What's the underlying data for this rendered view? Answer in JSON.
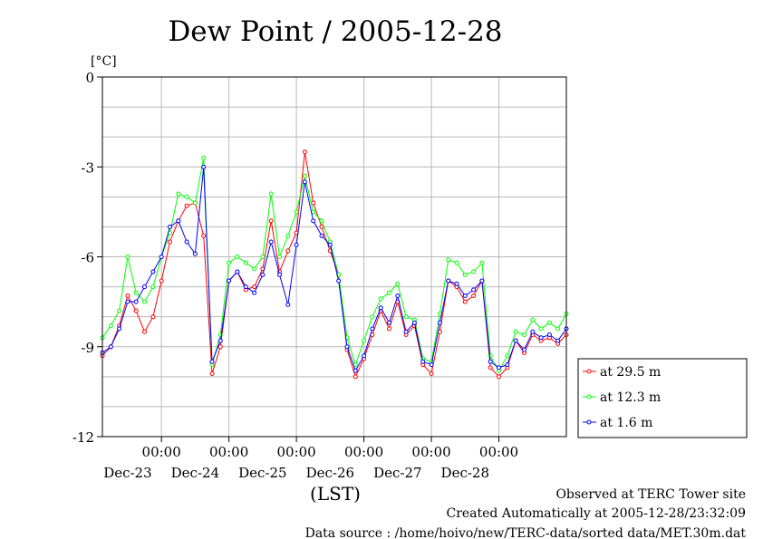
{
  "chart_data": {
    "type": "line",
    "title": "Dew Point / 2005-12-28",
    "ylabel": "[°C]",
    "xlabel": "(LST)",
    "xlim": [
      "2005-12-22T03:00",
      "2005-12-29T00:00"
    ],
    "ylim": [
      -12,
      0
    ],
    "y_ticks": [
      0,
      -3,
      -6,
      -9,
      -12
    ],
    "y_tick_labels": [
      "0",
      "-3",
      "-6",
      "-9",
      "-12"
    ],
    "x_ticks": [
      "2005-12-23T00:00",
      "2005-12-24T00:00",
      "2005-12-25T00:00",
      "2005-12-26T00:00",
      "2005-12-27T00:00",
      "2005-12-28T00:00"
    ],
    "x_tick_labels": [
      "00:00",
      "00:00",
      "00:00",
      "00:00",
      "00:00",
      "00:00"
    ],
    "day_labels": [
      "Dec-23",
      "Dec-24",
      "Dec-25",
      "Dec-26",
      "Dec-27",
      "Dec-28"
    ],
    "grid": true,
    "legend_position": "right",
    "x": [
      "2005-12-22T03:00",
      "2005-12-22T06:00",
      "2005-12-22T09:00",
      "2005-12-22T12:00",
      "2005-12-22T15:00",
      "2005-12-22T18:00",
      "2005-12-22T21:00",
      "2005-12-23T00:00",
      "2005-12-23T03:00",
      "2005-12-23T06:00",
      "2005-12-23T09:00",
      "2005-12-23T12:00",
      "2005-12-23T15:00",
      "2005-12-23T18:00",
      "2005-12-23T21:00",
      "2005-12-24T00:00",
      "2005-12-24T03:00",
      "2005-12-24T06:00",
      "2005-12-24T09:00",
      "2005-12-24T12:00",
      "2005-12-24T15:00",
      "2005-12-24T18:00",
      "2005-12-24T21:00",
      "2005-12-25T00:00",
      "2005-12-25T03:00",
      "2005-12-25T06:00",
      "2005-12-25T09:00",
      "2005-12-25T12:00",
      "2005-12-25T15:00",
      "2005-12-25T18:00",
      "2005-12-25T21:00",
      "2005-12-26T00:00",
      "2005-12-26T03:00",
      "2005-12-26T06:00",
      "2005-12-26T09:00",
      "2005-12-26T12:00",
      "2005-12-26T15:00",
      "2005-12-26T18:00",
      "2005-12-26T21:00",
      "2005-12-27T00:00",
      "2005-12-27T03:00",
      "2005-12-27T06:00",
      "2005-12-27T09:00",
      "2005-12-27T12:00",
      "2005-12-27T15:00",
      "2005-12-27T18:00",
      "2005-12-27T21:00",
      "2005-12-28T00:00",
      "2005-12-28T03:00",
      "2005-12-28T06:00",
      "2005-12-28T09:00",
      "2005-12-28T12:00",
      "2005-12-28T15:00",
      "2005-12-28T18:00",
      "2005-12-28T21:00",
      "2005-12-29T00:00"
    ],
    "series": [
      {
        "name": "at 29.5 m",
        "color": "#ff0000",
        "values": [
          -9.3,
          -9.0,
          -8.3,
          -7.3,
          -7.8,
          -8.5,
          -8.0,
          -6.8,
          -5.5,
          -4.8,
          -4.3,
          -4.2,
          -5.3,
          -9.9,
          -9.0,
          -6.8,
          -6.5,
          -7.1,
          -7.0,
          -6.4,
          -4.8,
          -6.5,
          -5.8,
          -5.2,
          -2.5,
          -4.2,
          -5.0,
          -5.8,
          -6.6,
          -9.1,
          -10.0,
          -9.4,
          -8.6,
          -7.8,
          -8.4,
          -7.5,
          -8.6,
          -8.3,
          -9.6,
          -9.9,
          -8.5,
          -6.8,
          -7.0,
          -7.5,
          -7.3,
          -6.8,
          -9.7,
          -10.0,
          -9.7,
          -8.8,
          -9.2,
          -8.6,
          -8.8,
          -8.7,
          -8.9,
          -8.6
        ]
      },
      {
        "name": "at 12.3 m",
        "color": "#00ff00",
        "values": [
          -8.7,
          -8.3,
          -7.8,
          -6.0,
          -7.2,
          -7.5,
          -7.0,
          -6.0,
          -5.2,
          -3.9,
          -4.0,
          -4.2,
          -2.7,
          -9.6,
          -8.6,
          -6.2,
          -6.0,
          -6.2,
          -6.4,
          -6.0,
          -3.9,
          -6.0,
          -5.3,
          -4.5,
          -3.3,
          -4.5,
          -4.8,
          -5.5,
          -6.6,
          -8.7,
          -9.6,
          -8.8,
          -8.0,
          -7.4,
          -7.2,
          -6.9,
          -8.0,
          -8.1,
          -9.4,
          -9.5,
          -7.9,
          -6.1,
          -6.2,
          -6.6,
          -6.5,
          -6.2,
          -9.3,
          -9.8,
          -9.3,
          -8.5,
          -8.6,
          -8.1,
          -8.4,
          -8.2,
          -8.4,
          -7.9
        ]
      },
      {
        "name": "at 1.6 m",
        "color": "#0000ff",
        "values": [
          -9.2,
          -9.0,
          -8.4,
          -7.5,
          -7.5,
          -7.0,
          -6.5,
          -6.0,
          -5.0,
          -4.8,
          -5.5,
          -5.9,
          -3.0,
          -9.5,
          -8.8,
          -6.8,
          -6.5,
          -7.0,
          -7.2,
          -6.6,
          -5.5,
          -6.6,
          -7.6,
          -5.6,
          -3.5,
          -4.8,
          -5.3,
          -5.6,
          -6.8,
          -9.0,
          -9.8,
          -9.3,
          -8.4,
          -7.7,
          -8.2,
          -7.3,
          -8.5,
          -8.2,
          -9.5,
          -9.6,
          -8.2,
          -6.8,
          -6.9,
          -7.3,
          -7.1,
          -6.8,
          -9.5,
          -9.7,
          -9.6,
          -8.8,
          -9.1,
          -8.5,
          -8.7,
          -8.6,
          -8.8,
          -8.4
        ]
      }
    ]
  },
  "footer": {
    "site": "Observed at TERC Tower site",
    "created": "Created Automatically at 2005-12-28/23:32:09",
    "source": "Data source : /home/hoivo/new/TERC-data/sorted  data/MET.30m.dat"
  }
}
